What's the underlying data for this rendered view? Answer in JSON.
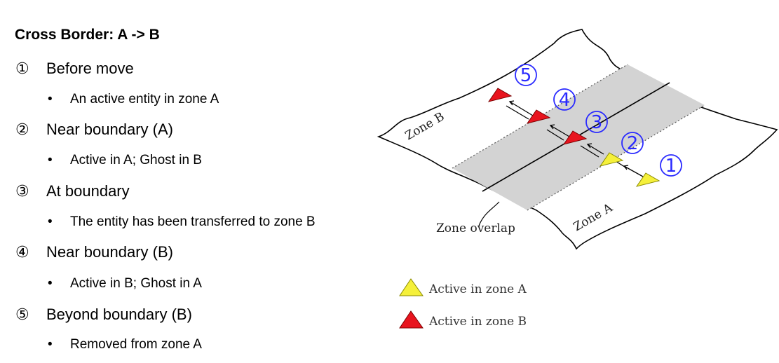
{
  "title": "Cross Border: A -> B",
  "steps": [
    {
      "num": "①",
      "label": "Before move",
      "detail": "An active entity in zone A"
    },
    {
      "num": "②",
      "label": "Near boundary (A)",
      "detail": "Active in A; Ghost in B"
    },
    {
      "num": "③",
      "label": "At boundary",
      "detail": "The entity has been transferred to zone B"
    },
    {
      "num": "④",
      "label": "Near boundary (B)",
      "detail": "Active in B; Ghost in A"
    },
    {
      "num": "⑤",
      "label": "Beyond boundary (B)",
      "detail": "Removed from zone A"
    }
  ],
  "bullet": "•",
  "diagram": {
    "zone_b": "Zone B",
    "zone_a": "Zone A",
    "overlap": "Zone overlap",
    "markers": [
      "1",
      "2",
      "3",
      "4",
      "5"
    ],
    "legend": [
      {
        "label": "Active in zone A",
        "color": "#f5f03a"
      },
      {
        "label": "Active in zone B",
        "color": "#e8141e"
      }
    ]
  },
  "colors": {
    "overlap_band": "#d3d3d3",
    "marker_blue": "#2a2aff"
  }
}
